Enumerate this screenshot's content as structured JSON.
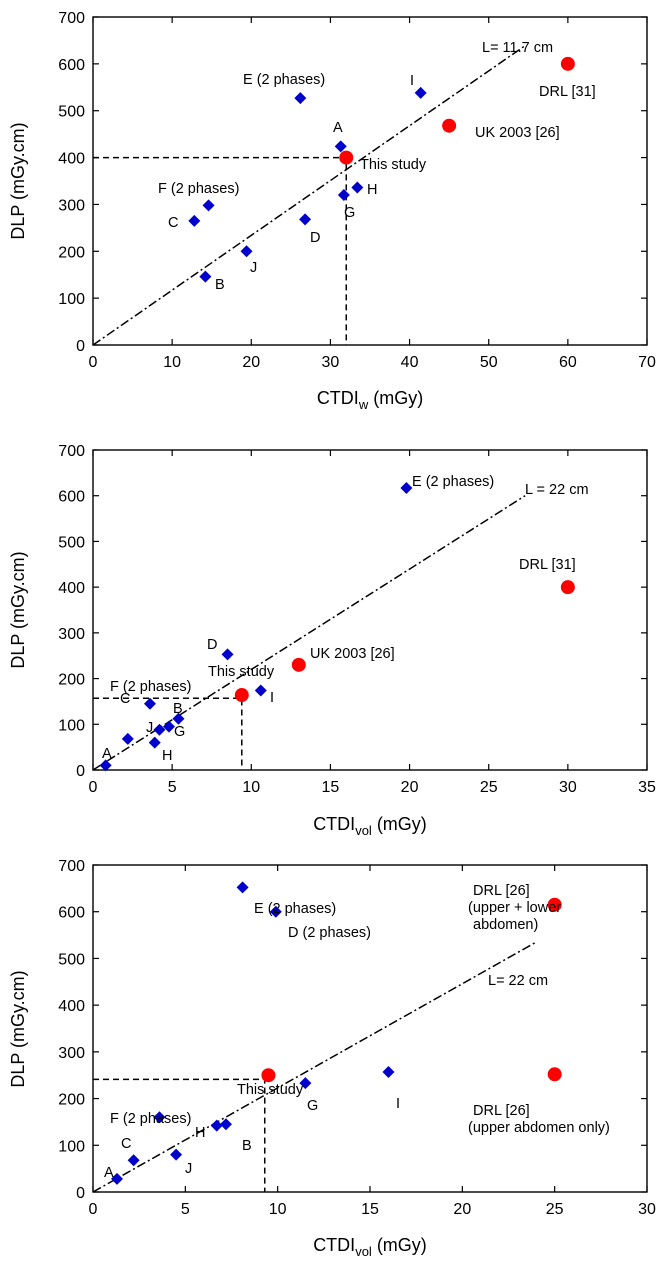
{
  "colors": {
    "study_marker": "#0000cc",
    "reference_marker": "#ff0000",
    "axis": "#000000"
  },
  "chart_data": [
    {
      "type": "scatter",
      "xlabel": "CTDIw (mGy)",
      "ylabel": "DLP (mGy.cm)",
      "xlim": [
        0,
        70
      ],
      "ylim": [
        0,
        700
      ],
      "xticks": [
        "0",
        "10",
        "20",
        "30",
        "40",
        "50",
        "60",
        "70"
      ],
      "yticks": [
        "0",
        "100",
        "200",
        "300",
        "400",
        "500",
        "600",
        "700"
      ],
      "points": [
        {
          "label": "A",
          "x": 31.3,
          "y": 424,
          "marker": "diamond"
        },
        {
          "label": "B",
          "x": 14.2,
          "y": 146,
          "marker": "diamond"
        },
        {
          "label": "C",
          "x": 12.8,
          "y": 265,
          "marker": "diamond"
        },
        {
          "label": "D",
          "x": 26.8,
          "y": 268,
          "marker": "diamond"
        },
        {
          "label": "E (2 phases)",
          "x": 26.2,
          "y": 527,
          "marker": "diamond"
        },
        {
          "label": "F (2 phases)",
          "x": 14.6,
          "y": 298,
          "marker": "diamond"
        },
        {
          "label": "G",
          "x": 31.7,
          "y": 320,
          "marker": "diamond"
        },
        {
          "label": "H",
          "x": 33.4,
          "y": 336,
          "marker": "diamond"
        },
        {
          "label": "I",
          "x": 41.4,
          "y": 538,
          "marker": "diamond"
        },
        {
          "label": "J",
          "x": 19.4,
          "y": 200,
          "marker": "diamond"
        },
        {
          "label": "This study",
          "x": 32.0,
          "y": 400,
          "marker": "circle"
        },
        {
          "label": "UK 2003 [26]",
          "x": 45.0,
          "y": 468,
          "marker": "circle"
        },
        {
          "label": "DRL [31]",
          "x": 60.0,
          "y": 600,
          "marker": "circle"
        }
      ],
      "line": {
        "label": "L= 11.7 cm",
        "x": [
          0,
          54.7
        ],
        "y": [
          0,
          640
        ]
      },
      "guide": {
        "x": 32.0,
        "y": 400
      }
    },
    {
      "type": "scatter",
      "xlabel": "CTDIvol (mGy)",
      "ylabel": "DLP (mGy.cm)",
      "xlim": [
        0,
        35
      ],
      "ylim": [
        0,
        700
      ],
      "xticks": [
        "0",
        "5",
        "10",
        "15",
        "20",
        "25",
        "30",
        "35"
      ],
      "yticks": [
        "0",
        "100",
        "200",
        "300",
        "400",
        "500",
        "600",
        "700"
      ],
      "points": [
        {
          "label": "A",
          "x": 0.8,
          "y": 10,
          "marker": "diamond"
        },
        {
          "label": "B",
          "x": 5.4,
          "y": 112,
          "marker": "diamond"
        },
        {
          "label": "C",
          "x": 2.2,
          "y": 68,
          "marker": "diamond"
        },
        {
          "label": "D",
          "x": 8.5,
          "y": 253,
          "marker": "diamond"
        },
        {
          "label": "E (2 phases)",
          "x": 19.8,
          "y": 617,
          "marker": "diamond"
        },
        {
          "label": "F (2 phases)",
          "x": 3.6,
          "y": 145,
          "marker": "diamond"
        },
        {
          "label": "G",
          "x": 4.8,
          "y": 95,
          "marker": "diamond"
        },
        {
          "label": "H",
          "x": 3.9,
          "y": 60,
          "marker": "diamond"
        },
        {
          "label": "I",
          "x": 10.6,
          "y": 174,
          "marker": "diamond"
        },
        {
          "label": "J",
          "x": 4.2,
          "y": 88,
          "marker": "diamond"
        },
        {
          "label": "This study",
          "x": 9.4,
          "y": 164,
          "marker": "circle"
        },
        {
          "label": "UK 2003 [26]",
          "x": 13.0,
          "y": 230,
          "marker": "circle"
        },
        {
          "label": "DRL [31]",
          "x": 30.0,
          "y": 400,
          "marker": "circle"
        }
      ],
      "line": {
        "label": "L = 22 cm",
        "x": [
          0,
          27.3
        ],
        "y": [
          0,
          600
        ]
      },
      "guide": {
        "x": 9.4,
        "y": 157
      }
    },
    {
      "type": "scatter",
      "xlabel": "CTDIvol (mGy)",
      "ylabel": "DLP (mGy.cm)",
      "xlim": [
        0,
        30
      ],
      "ylim": [
        0,
        700
      ],
      "xticks": [
        "0",
        "5",
        "10",
        "15",
        "20",
        "25",
        "30"
      ],
      "yticks": [
        "0",
        "100",
        "200",
        "300",
        "400",
        "500",
        "600",
        "700"
      ],
      "points": [
        {
          "label": "A",
          "x": 1.3,
          "y": 28,
          "marker": "diamond"
        },
        {
          "label": "B",
          "x": 7.2,
          "y": 145,
          "marker": "diamond"
        },
        {
          "label": "C",
          "x": 2.2,
          "y": 68,
          "marker": "diamond"
        },
        {
          "label": "D (2 phases)",
          "x": 9.9,
          "y": 600,
          "marker": "diamond"
        },
        {
          "label": "E (2 phases)",
          "x": 8.1,
          "y": 652,
          "marker": "diamond"
        },
        {
          "label": "F (2 phases)",
          "x": 3.6,
          "y": 160,
          "marker": "diamond"
        },
        {
          "label": "G",
          "x": 11.5,
          "y": 233,
          "marker": "diamond"
        },
        {
          "label": "H",
          "x": 6.7,
          "y": 142,
          "marker": "diamond"
        },
        {
          "label": "I",
          "x": 16.0,
          "y": 257,
          "marker": "diamond"
        },
        {
          "label": "J",
          "x": 4.5,
          "y": 80,
          "marker": "diamond"
        },
        {
          "label": "This study",
          "x": 9.5,
          "y": 250,
          "marker": "circle"
        },
        {
          "label": "DRL [26] (upper + lower abdomen)",
          "x": 25.0,
          "y": 615,
          "marker": "circle"
        },
        {
          "label": "DRL [26] (upper abdomen only)",
          "x": 25.0,
          "y": 252,
          "marker": "circle"
        }
      ],
      "line": {
        "label": "L= 22 cm",
        "x": [
          0,
          24
        ],
        "y": [
          0,
          535
        ]
      },
      "guide": {
        "x": 9.3,
        "y": 241
      }
    }
  ]
}
